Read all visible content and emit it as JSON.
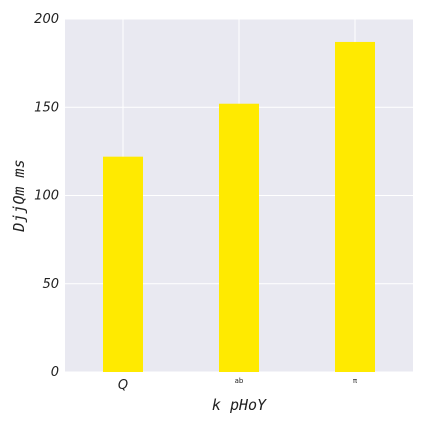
{
  "colors": {
    "plot_background": "#e9e9f1",
    "grid": "#ffffff",
    "bar": "#ffea00",
    "text": "#222222"
  },
  "chart_data": {
    "type": "bar",
    "categories": [
      "Q",
      "ab",
      "π"
    ],
    "values": [
      122,
      152,
      187
    ],
    "title": "",
    "xlabel": "k pHoY",
    "ylabel": "DjjQm ms",
    "ylim": [
      0,
      200
    ],
    "yticks": [
      0,
      50,
      100,
      150,
      200
    ],
    "grid": true,
    "legend": "none"
  }
}
